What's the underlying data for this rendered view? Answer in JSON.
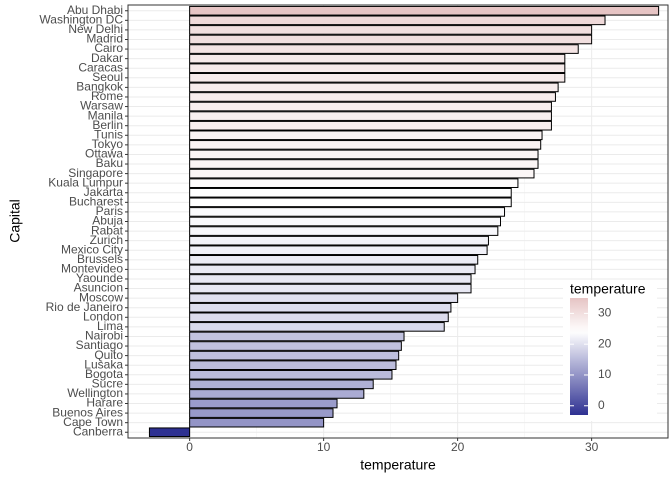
{
  "chart_data": {
    "type": "hbar",
    "xlabel": "temperature",
    "ylabel": "Capital",
    "categories": [
      "Abu Dhabi",
      "Washington DC",
      "New Delhi",
      "Madrid",
      "Cairo",
      "Dakar",
      "Caracas",
      "Seoul",
      "Bangkok",
      "Rome",
      "Warsaw",
      "Manila",
      "Berlin",
      "Tunis",
      "Tokyo",
      "Ottawa",
      "Baku",
      "Singapore",
      "Kuala Lumpur",
      "Jakarta",
      "Bucharest",
      "Paris",
      "Abuja",
      "Rabat",
      "Zurich",
      "Mexico City",
      "Brussels",
      "Montevideo",
      "Yaounde",
      "Asuncion",
      "Moscow",
      "Rio de Janeiro",
      "London",
      "Lima",
      "Nairobi",
      "Santiago",
      "Quito",
      "Lusaka",
      "Bogota",
      "Sucre",
      "Wellington",
      "Harare",
      "Buenos Aires",
      "Cape Town",
      "Canberra"
    ],
    "values": [
      35,
      31,
      30,
      30,
      29,
      28,
      28,
      28,
      27.5,
      27.3,
      27,
      27,
      27,
      26.3,
      26.2,
      26,
      26,
      25.7,
      24.5,
      24,
      24,
      23.5,
      23.2,
      23,
      22.3,
      22.2,
      21.5,
      21.3,
      21,
      21,
      20,
      19.5,
      19.3,
      19,
      16,
      15.8,
      15.6,
      15.4,
      15.1,
      13.7,
      13,
      11,
      10.7,
      10,
      -3
    ],
    "xlim": [
      -4.6,
      35.7
    ],
    "xticks": [
      0,
      10,
      20,
      30
    ],
    "grid": true,
    "color_scale": {
      "low": "#2e3192",
      "mid": "#ffffff",
      "high": "#e6c4c4",
      "midpoint": 24
    },
    "legend": {
      "title": "temperature",
      "ticks": [
        0,
        10,
        20,
        30
      ],
      "position": "bottom-right"
    }
  }
}
